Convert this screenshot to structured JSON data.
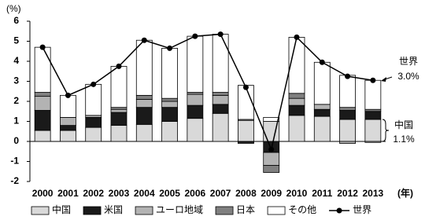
{
  "chart_data": {
    "type": "bar",
    "y_unit": "(%)",
    "x_unit": "(年)",
    "categories": [
      "2000",
      "2001",
      "2002",
      "2003",
      "2004",
      "2005",
      "2006",
      "2007",
      "2008",
      "2009",
      "2010",
      "2011",
      "2012",
      "2013"
    ],
    "series": [
      {
        "name": "中国",
        "color": "#d9d9d9",
        "values": [
          0.55,
          0.55,
          0.7,
          0.8,
          0.85,
          1.0,
          1.15,
          1.4,
          1.05,
          1.0,
          1.3,
          1.25,
          1.1,
          1.1
        ]
      },
      {
        "name": "米国",
        "color": "#1a1a1a",
        "values": [
          1.0,
          0.25,
          0.5,
          0.65,
          0.85,
          0.7,
          0.65,
          0.45,
          -0.05,
          -0.55,
          0.5,
          0.35,
          0.45,
          0.4
        ]
      },
      {
        "name": "ユーロ地域",
        "color": "#b3b3b3",
        "values": [
          0.7,
          0.4,
          0.1,
          0.15,
          0.4,
          0.3,
          0.55,
          0.45,
          0.05,
          -0.65,
          0.35,
          0.25,
          -0.1,
          -0.05
        ]
      },
      {
        "name": "日本",
        "color": "#808080",
        "values": [
          0.2,
          0.0,
          0.0,
          0.1,
          0.2,
          0.15,
          0.1,
          0.15,
          -0.05,
          -0.35,
          0.25,
          0.0,
          0.15,
          0.1
        ]
      },
      {
        "name": "その他",
        "color": "#ffffff",
        "values": [
          2.25,
          1.1,
          1.55,
          2.05,
          2.75,
          2.5,
          2.8,
          2.9,
          1.7,
          0.2,
          2.8,
          2.1,
          1.6,
          1.45
        ]
      },
      {
        "name": "世界",
        "type": "line",
        "color": "#000000",
        "values": [
          4.7,
          2.3,
          2.85,
          3.75,
          5.05,
          4.65,
          5.25,
          5.35,
          2.7,
          -0.4,
          5.2,
          3.95,
          3.25,
          3.05
        ]
      }
    ],
    "annotations": [
      {
        "name": "世界",
        "value": "3.0%"
      },
      {
        "name": "中国",
        "value": "1.1%"
      }
    ],
    "ylim": [
      -2,
      6
    ],
    "yticks": [
      -2,
      -1,
      0,
      1,
      2,
      3,
      4,
      5,
      6
    ]
  }
}
